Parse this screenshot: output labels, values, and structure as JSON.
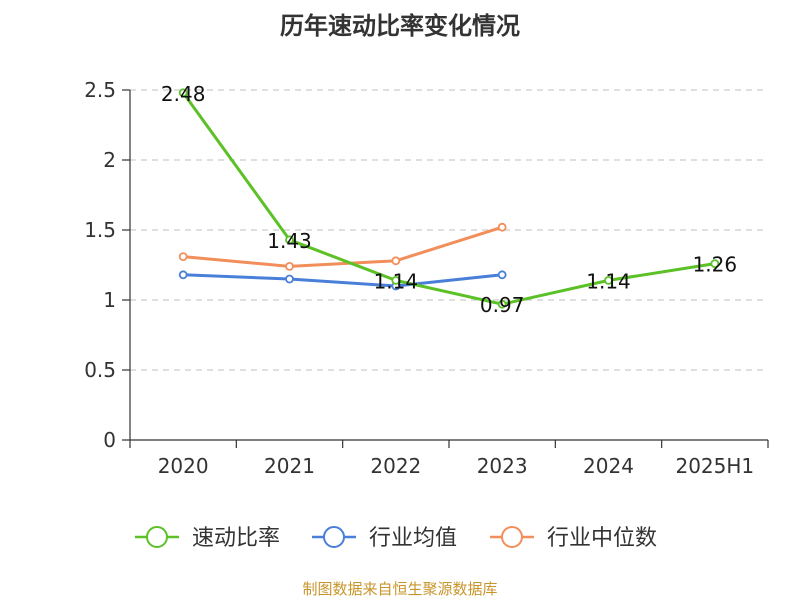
{
  "chart_data": {
    "type": "line",
    "title": "历年速动比率变化情况",
    "categories": [
      "2020",
      "2021",
      "2022",
      "2023",
      "2024",
      "2025H1"
    ],
    "ylim": [
      0,
      2.5
    ],
    "yticks": [
      "0",
      "0.5",
      "1",
      "1.5",
      "2",
      "2.5"
    ],
    "grid": true,
    "legend_position": "bottom",
    "series": [
      {
        "name": "速动比率",
        "color": "#5bc126",
        "values": [
          2.48,
          1.43,
          1.14,
          0.97,
          1.14,
          1.26
        ],
        "labels": [
          "2.48",
          "1.43",
          "1.14",
          "0.97",
          "1.14",
          "1.26"
        ]
      },
      {
        "name": "行业均值",
        "color": "#4a7fd9",
        "values": [
          1.18,
          1.15,
          1.1,
          1.18,
          null,
          null
        ]
      },
      {
        "name": "行业中位数",
        "color": "#f28e5a",
        "values": [
          1.31,
          1.24,
          1.28,
          1.52,
          null,
          null
        ]
      }
    ]
  },
  "source_note": "制图数据来自恒生聚源数据库"
}
